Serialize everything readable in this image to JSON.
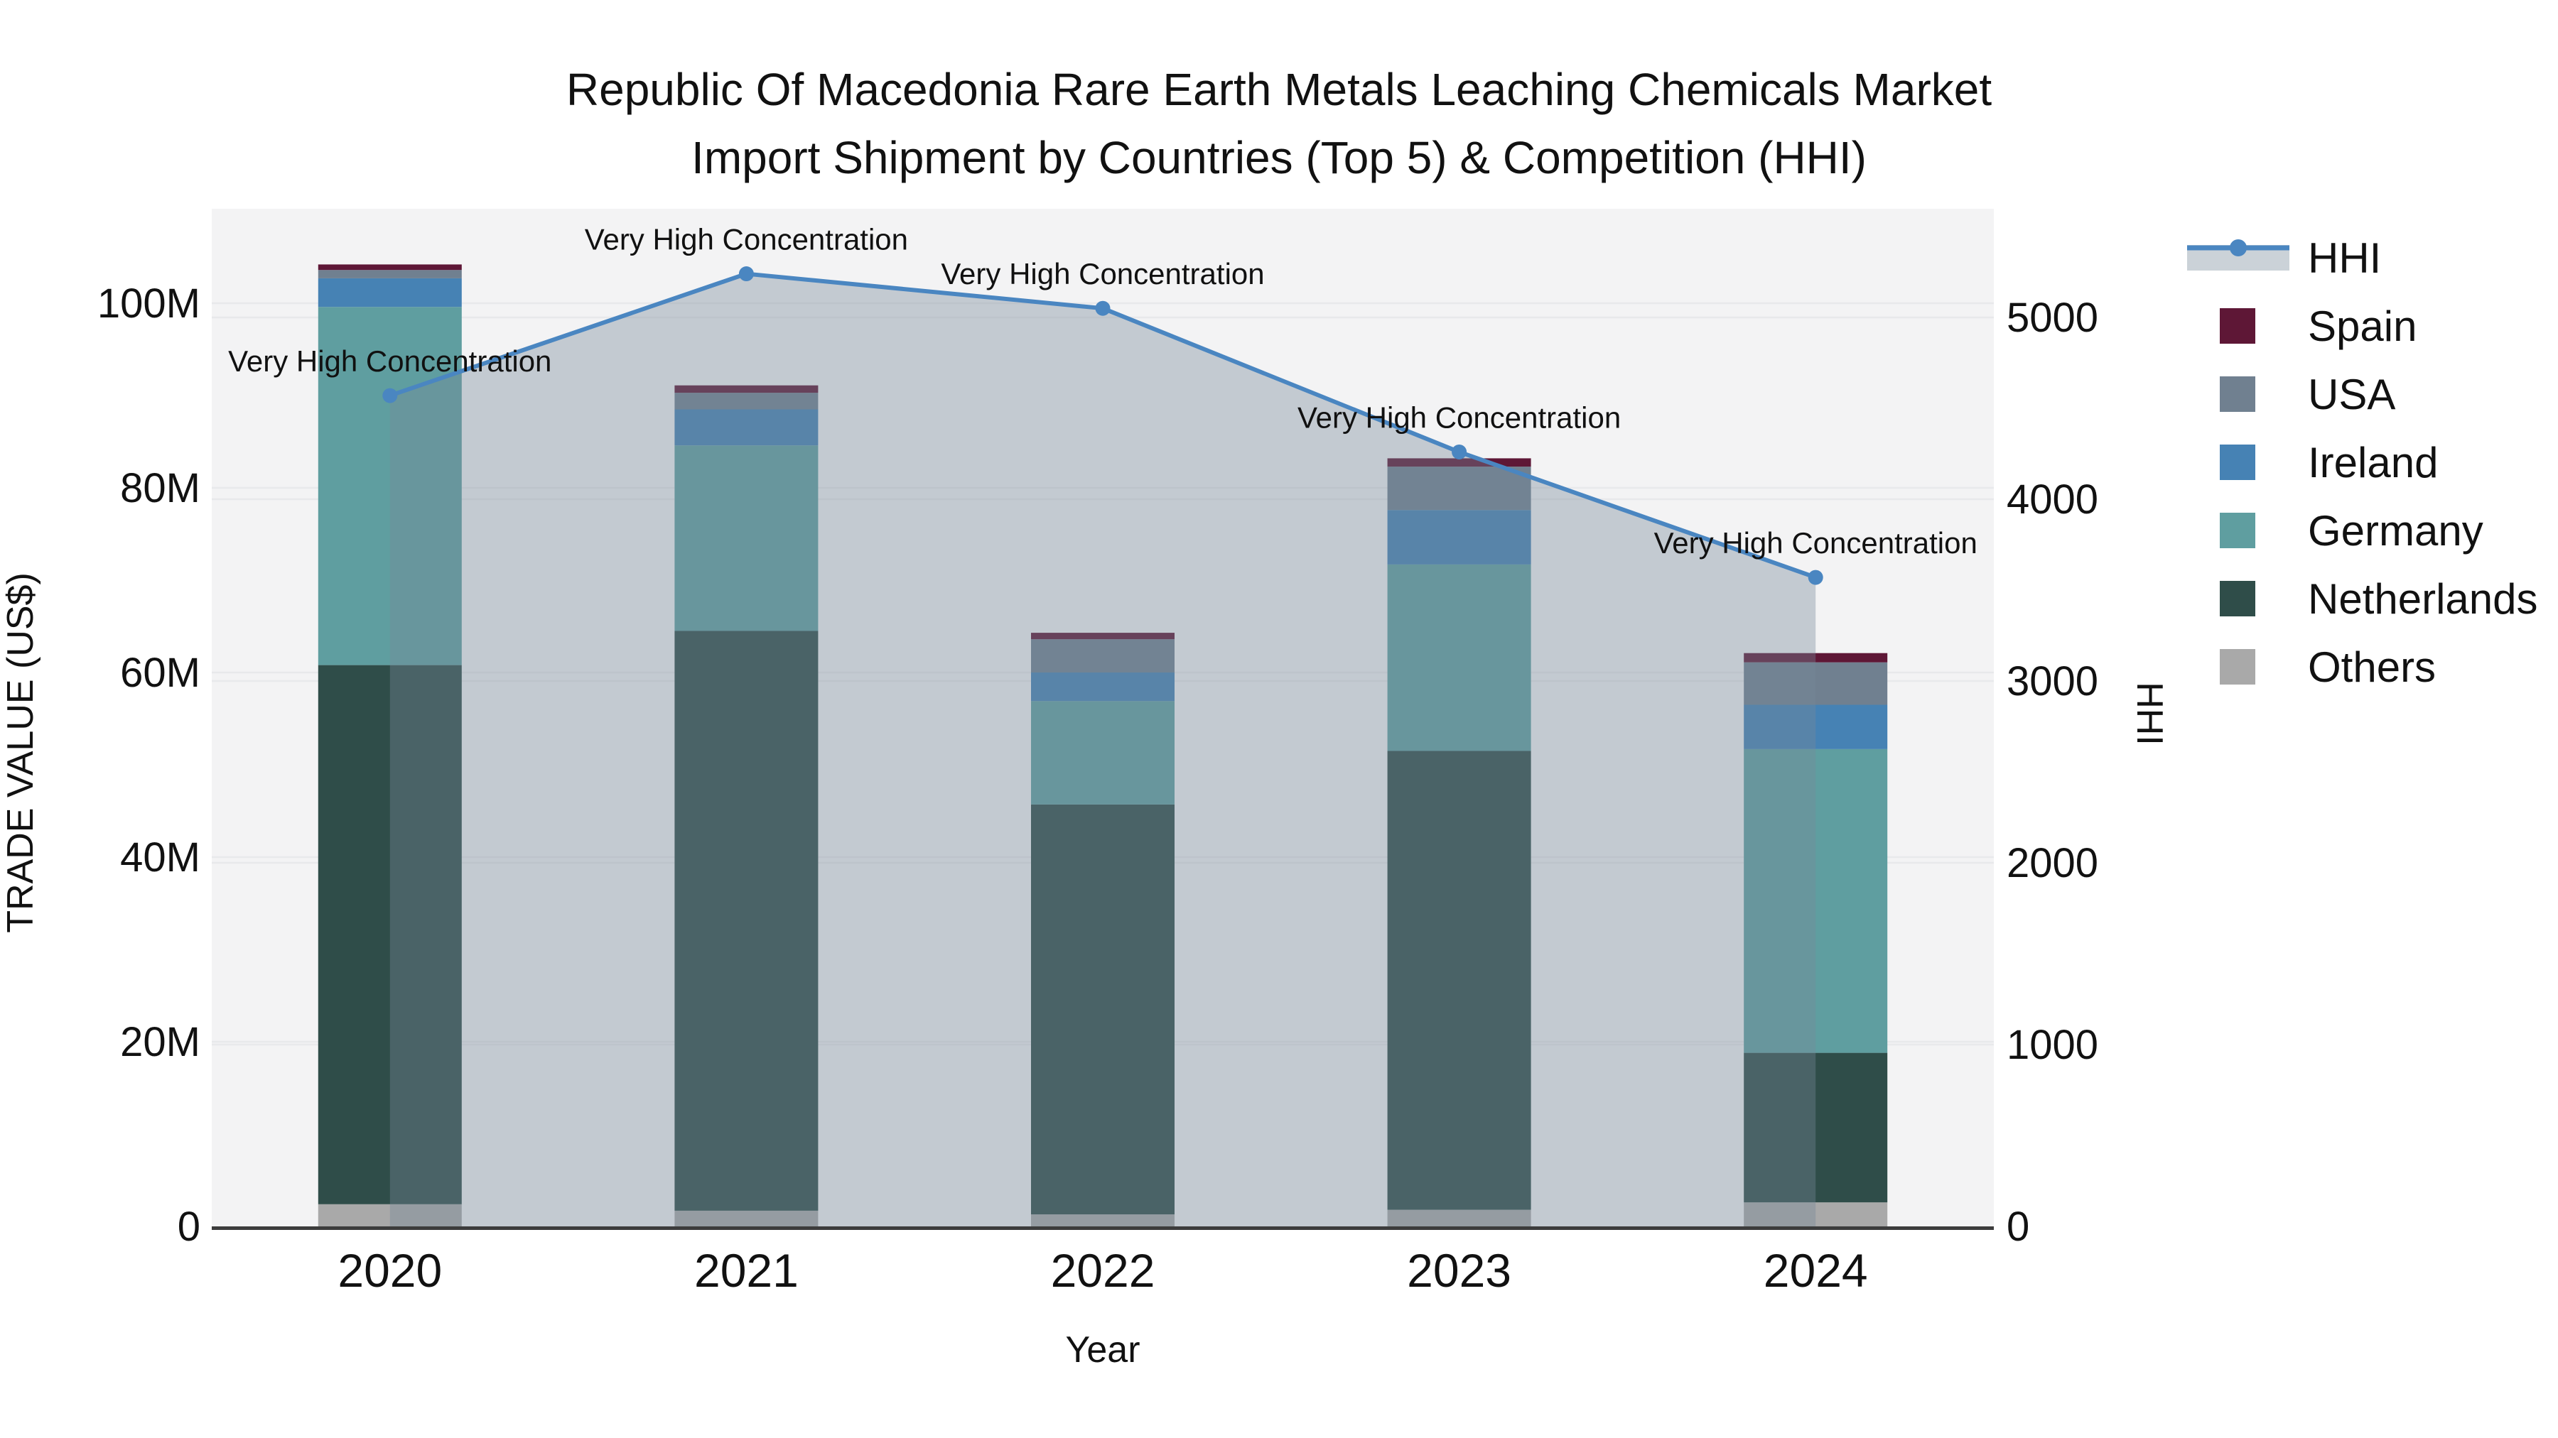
{
  "title": {
    "line1": "Republic Of Macedonia Rare Earth Metals Leaching Chemicals Market",
    "line2": "Import Shipment by Countries (Top 5) & Competition (HHI)"
  },
  "axes": {
    "x_title": "Year",
    "y_left_title": "TRADE VALUE (US$)",
    "y_right_title": "HHI"
  },
  "legend": {
    "items": [
      {
        "label": "HHI",
        "type": "line",
        "color": "#4A86C1"
      },
      {
        "label": "Spain",
        "type": "swatch",
        "color": "#5E1736"
      },
      {
        "label": "USA",
        "type": "swatch",
        "color": "#708090"
      },
      {
        "label": "Ireland",
        "type": "swatch",
        "color": "#4682B4"
      },
      {
        "label": "Germany",
        "type": "swatch",
        "color": "#5F9EA0"
      },
      {
        "label": "Netherlands",
        "type": "swatch",
        "color": "#2F4D49"
      },
      {
        "label": "Others",
        "type": "swatch",
        "color": "#A9A9A9"
      }
    ]
  },
  "colors": {
    "plot_background": "#F3F3F4",
    "gridline": "#E8E9EB",
    "axis_line": "#3C3C3C",
    "hhi_line": "#4A86C1",
    "hhi_area_fill": "rgba(119,136,153,0.38)",
    "annotation_text": "#000000"
  },
  "chart_data": {
    "type": "bar",
    "subtype": "stacked-bars-with-line-overlay",
    "categories": [
      "2020",
      "2021",
      "2022",
      "2023",
      "2024"
    ],
    "bar_value_unit": "US$ millions",
    "series": [
      {
        "name": "Spain",
        "color": "#5E1736",
        "values": [
          0.6,
          0.8,
          0.7,
          0.9,
          1.0
        ]
      },
      {
        "name": "USA",
        "color": "#708090",
        "values": [
          0.9,
          1.8,
          3.6,
          4.7,
          4.6
        ]
      },
      {
        "name": "Ireland",
        "color": "#4682B4",
        "values": [
          3.1,
          3.9,
          3.1,
          5.9,
          4.8
        ]
      },
      {
        "name": "Germany",
        "color": "#5F9EA0",
        "values": [
          38.8,
          20.1,
          11.2,
          20.2,
          32.9
        ]
      },
      {
        "name": "Netherlands",
        "color": "#2F4D49",
        "values": [
          58.4,
          62.8,
          44.4,
          49.7,
          16.2
        ]
      },
      {
        "name": "Others",
        "color": "#A9A9A9",
        "values": [
          2.4,
          1.7,
          1.3,
          1.8,
          2.6
        ]
      }
    ],
    "stack_order_bottom_to_top": [
      "Others",
      "Netherlands",
      "Germany",
      "Ireland",
      "USA",
      "Spain"
    ],
    "bar_totals": [
      104.2,
      91.1,
      64.3,
      83.2,
      62.1
    ],
    "line_series": {
      "name": "HHI",
      "color": "#4A86C1",
      "area_fill": "rgba(119,136,153,0.38)",
      "values": [
        4570,
        5240,
        5050,
        4260,
        3570
      ],
      "point_annotation": "Very High Concentration"
    },
    "title": "Republic Of Macedonia Rare Earth Metals Leaching Chemicals Market Import Shipment by Countries (Top 5) & Competition (HHI)",
    "xlabel": "Year",
    "ylabel_left": "TRADE VALUE (US$)",
    "ylabel_right": "HHI",
    "y_left_ticks": {
      "values": [
        0,
        20,
        40,
        60,
        80,
        100
      ],
      "labels": [
        "0",
        "20M",
        "40M",
        "60M",
        "80M",
        "100M"
      ],
      "max": 110.3
    },
    "y_right_ticks": {
      "values": [
        0,
        1000,
        2000,
        3000,
        4000,
        5000
      ],
      "labels": [
        "0",
        "1000",
        "2000",
        "3000",
        "4000",
        "5000"
      ],
      "max": 5600
    },
    "grid": true,
    "legend_position": "right-top-outside"
  }
}
